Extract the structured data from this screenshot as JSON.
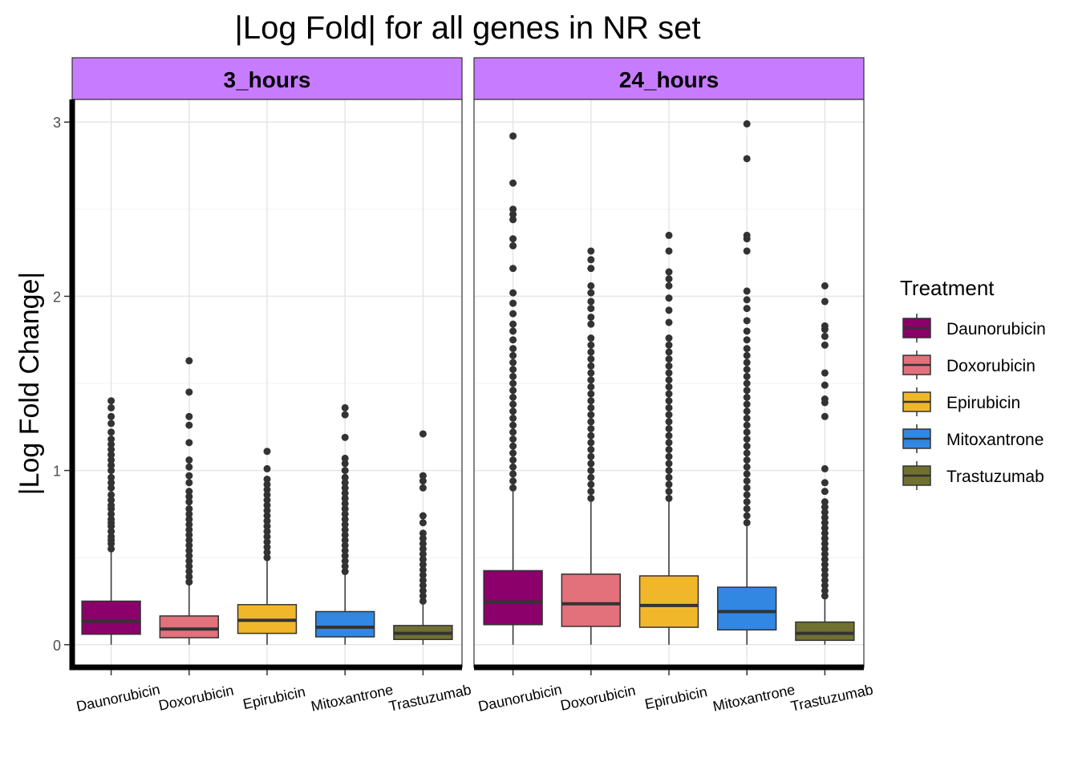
{
  "chart_data": {
    "type": "boxplot",
    "title": "|Log Fold| for all genes in NR set",
    "ylabel": "|Log Fold Change|",
    "xlabel": "",
    "ylim": [
      -0.13,
      3.13
    ],
    "yticks": [
      0,
      1,
      2,
      3
    ],
    "grid": true,
    "legend": {
      "title": "Treatment",
      "position": "right",
      "items": [
        {
          "label": "Daunorubicin",
          "color": "#8B006B"
        },
        {
          "label": "Doxorubicin",
          "color": "#E2717C"
        },
        {
          "label": "Epirubicin",
          "color": "#F1B72B"
        },
        {
          "label": "Mitoxantrone",
          "color": "#3287E2"
        },
        {
          "label": "Trastuzumab",
          "color": "#707031"
        }
      ]
    },
    "categories": [
      "Daunorubicin",
      "Doxorubicin",
      "Epirubicin",
      "Mitoxantrone",
      "Trastuzumab"
    ],
    "panels": [
      {
        "name": "3_hours",
        "boxes": [
          {
            "category": "Daunorubicin",
            "min": 0.0,
            "q1": 0.06,
            "median": 0.135,
            "q3": 0.25,
            "max": 0.53,
            "outliers": [
              0.55,
              0.58,
              0.6,
              0.62,
              0.65,
              0.68,
              0.7,
              0.72,
              0.75,
              0.78,
              0.8,
              0.83,
              0.86,
              0.9,
              0.93,
              0.96,
              1.0,
              1.03,
              1.06,
              1.09,
              1.12,
              1.15,
              1.18,
              1.22,
              1.27,
              1.31,
              1.36,
              1.4
            ]
          },
          {
            "category": "Doxorubicin",
            "min": 0.0,
            "q1": 0.04,
            "median": 0.09,
            "q3": 0.165,
            "max": 0.34,
            "outliers": [
              0.36,
              0.39,
              0.42,
              0.45,
              0.48,
              0.51,
              0.54,
              0.57,
              0.6,
              0.63,
              0.66,
              0.69,
              0.72,
              0.75,
              0.78,
              0.82,
              0.85,
              0.88,
              0.93,
              0.97,
              1.02,
              1.06,
              1.16,
              1.26,
              1.31,
              1.45,
              1.63
            ]
          },
          {
            "category": "Epirubicin",
            "min": 0.0,
            "q1": 0.065,
            "median": 0.14,
            "q3": 0.23,
            "max": 0.48,
            "outliers": [
              0.5,
              0.53,
              0.56,
              0.59,
              0.62,
              0.65,
              0.68,
              0.71,
              0.74,
              0.77,
              0.8,
              0.83,
              0.86,
              0.89,
              0.92,
              0.95,
              1.01,
              1.11
            ]
          },
          {
            "category": "Mitoxantrone",
            "min": 0.0,
            "q1": 0.045,
            "median": 0.1,
            "q3": 0.19,
            "max": 0.4,
            "outliers": [
              0.42,
              0.45,
              0.48,
              0.51,
              0.54,
              0.57,
              0.6,
              0.63,
              0.66,
              0.69,
              0.72,
              0.75,
              0.78,
              0.81,
              0.84,
              0.87,
              0.9,
              0.93,
              0.96,
              1.0,
              1.04,
              1.07,
              1.19,
              1.32,
              1.36
            ]
          },
          {
            "category": "Trastuzumab",
            "min": 0.0,
            "q1": 0.03,
            "median": 0.065,
            "q3": 0.11,
            "max": 0.23,
            "outliers": [
              0.25,
              0.28,
              0.31,
              0.34,
              0.37,
              0.4,
              0.43,
              0.46,
              0.49,
              0.52,
              0.55,
              0.58,
              0.61,
              0.64,
              0.7,
              0.74,
              0.9,
              0.94,
              0.97,
              1.21
            ]
          }
        ]
      },
      {
        "name": "24_hours",
        "boxes": [
          {
            "category": "Daunorubicin",
            "min": 0.0,
            "q1": 0.115,
            "median": 0.245,
            "q3": 0.425,
            "max": 0.88,
            "outliers": [
              0.9,
              0.94,
              0.98,
              1.02,
              1.06,
              1.1,
              1.14,
              1.18,
              1.22,
              1.26,
              1.3,
              1.34,
              1.38,
              1.42,
              1.46,
              1.5,
              1.54,
              1.58,
              1.62,
              1.66,
              1.7,
              1.75,
              1.8,
              1.84,
              1.9,
              1.96,
              2.02,
              2.16,
              2.29,
              2.33,
              2.44,
              2.47,
              2.5,
              2.65,
              2.92
            ]
          },
          {
            "category": "Doxorubicin",
            "min": 0.0,
            "q1": 0.105,
            "median": 0.235,
            "q3": 0.405,
            "max": 0.82,
            "outliers": [
              0.84,
              0.88,
              0.92,
              0.96,
              1.0,
              1.04,
              1.08,
              1.12,
              1.16,
              1.2,
              1.24,
              1.28,
              1.32,
              1.36,
              1.4,
              1.44,
              1.48,
              1.52,
              1.56,
              1.6,
              1.64,
              1.68,
              1.72,
              1.76,
              1.84,
              1.88,
              1.93,
              1.97,
              2.02,
              2.06,
              2.16,
              2.21,
              2.26
            ]
          },
          {
            "category": "Epirubicin",
            "min": 0.0,
            "q1": 0.1,
            "median": 0.225,
            "q3": 0.395,
            "max": 0.82,
            "outliers": [
              0.84,
              0.88,
              0.92,
              0.96,
              1.0,
              1.04,
              1.08,
              1.12,
              1.16,
              1.2,
              1.24,
              1.28,
              1.32,
              1.36,
              1.4,
              1.44,
              1.48,
              1.52,
              1.56,
              1.6,
              1.64,
              1.68,
              1.72,
              1.76,
              1.85,
              1.92,
              1.99,
              2.06,
              2.1,
              2.14,
              2.26,
              2.35
            ]
          },
          {
            "category": "Mitoxantrone",
            "min": 0.0,
            "q1": 0.085,
            "median": 0.19,
            "q3": 0.33,
            "max": 0.68,
            "outliers": [
              0.7,
              0.74,
              0.78,
              0.82,
              0.86,
              0.9,
              0.94,
              0.98,
              1.02,
              1.06,
              1.1,
              1.14,
              1.18,
              1.22,
              1.26,
              1.3,
              1.34,
              1.38,
              1.42,
              1.46,
              1.5,
              1.54,
              1.58,
              1.62,
              1.66,
              1.7,
              1.75,
              1.8,
              1.86,
              1.93,
              1.98,
              2.03,
              2.26,
              2.33,
              2.35,
              2.79,
              2.99
            ]
          },
          {
            "category": "Trastuzumab",
            "min": 0.0,
            "q1": 0.025,
            "median": 0.065,
            "q3": 0.13,
            "max": 0.26,
            "outliers": [
              0.28,
              0.31,
              0.34,
              0.37,
              0.4,
              0.43,
              0.46,
              0.49,
              0.52,
              0.55,
              0.58,
              0.61,
              0.64,
              0.67,
              0.7,
              0.73,
              0.76,
              0.79,
              0.82,
              0.88,
              0.93,
              1.01,
              1.31,
              1.39,
              1.41,
              1.49,
              1.56,
              1.72,
              1.77,
              1.81,
              1.83,
              1.97,
              2.06
            ]
          }
        ]
      }
    ]
  }
}
